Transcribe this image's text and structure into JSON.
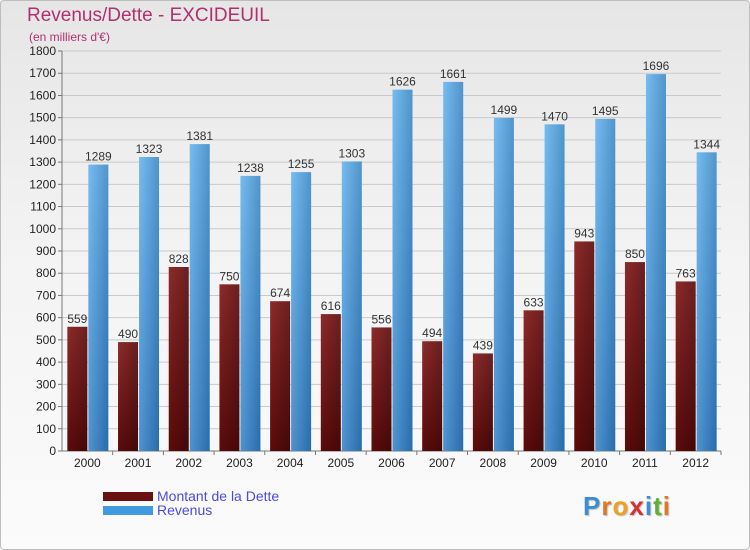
{
  "title": "Revenus/Dette - EXCIDEUIL",
  "subtitle": "(en milliers d'€)",
  "colors": {
    "debt": "#7a1a1a",
    "revenue": "#3f9ae0",
    "title": "#b03070",
    "legend_text": "#4a4ae0",
    "gridline": "#c9c9c9"
  },
  "legend": {
    "debt_label": "Montant de la Dette",
    "revenue_label": "Revenus"
  },
  "logo": {
    "text": "Proxiti",
    "letters": [
      "P",
      "r",
      "o",
      "x",
      "i",
      "t",
      "i"
    ],
    "letter_colors": [
      "#3b8fd0",
      "#e07820",
      "#f0a020",
      "#d83030",
      "#3b8fd0",
      "#60b030",
      "#e07820"
    ]
  },
  "chart_data": {
    "type": "bar",
    "categories": [
      "2000",
      "2001",
      "2002",
      "2003",
      "2004",
      "2005",
      "2006",
      "2007",
      "2008",
      "2009",
      "2010",
      "2011",
      "2012"
    ],
    "series": [
      {
        "name": "Montant de la Dette",
        "values": [
          559,
          490,
          828,
          750,
          674,
          616,
          556,
          494,
          439,
          633,
          943,
          850,
          763
        ]
      },
      {
        "name": "Revenus",
        "values": [
          1289,
          1323,
          1381,
          1238,
          1255,
          1303,
          1626,
          1661,
          1499,
          1470,
          1495,
          1696,
          1344
        ]
      }
    ],
    "ylim": [
      0,
      1800
    ],
    "ytick_step": 100,
    "grid": true,
    "legend_position": "bottom-left"
  }
}
